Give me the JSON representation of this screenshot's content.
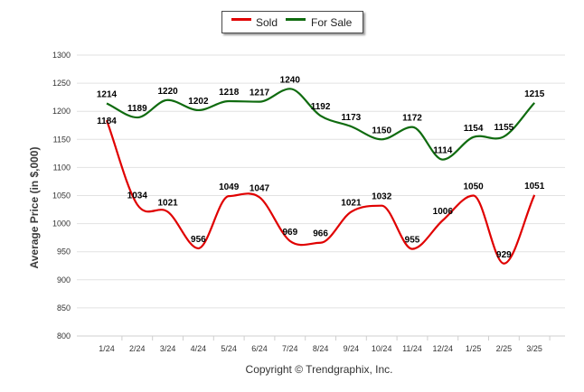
{
  "chart_data": {
    "type": "line",
    "categories": [
      "1/24",
      "2/24",
      "3/24",
      "4/24",
      "5/24",
      "6/24",
      "7/24",
      "8/24",
      "9/24",
      "10/24",
      "11/24",
      "12/24",
      "1/25",
      "2/25",
      "3/25"
    ],
    "series": [
      {
        "name": "Sold",
        "color": "#e00000",
        "values": [
          1184,
          1034,
          1021,
          956,
          1049,
          1047,
          969,
          966,
          1021,
          1032,
          955,
          1006,
          1050,
          929,
          1051
        ]
      },
      {
        "name": "For Sale",
        "color": "#0f6b0f",
        "values": [
          1214,
          1189,
          1220,
          1202,
          1218,
          1217,
          1240,
          1192,
          1173,
          1150,
          1172,
          1114,
          1154,
          1155,
          1215
        ]
      }
    ],
    "ylabel": "Average Price (in $,000)",
    "ylim": [
      800,
      1300
    ],
    "yticks": [
      800,
      850,
      900,
      950,
      1000,
      1050,
      1100,
      1150,
      1200,
      1250,
      1300
    ],
    "grid": true,
    "legend_position": "top-center"
  },
  "legend": {
    "sold_label": "Sold",
    "for_sale_label": "For Sale"
  },
  "footer": {
    "copyright": "Copyright © Trendgraphix, Inc."
  }
}
